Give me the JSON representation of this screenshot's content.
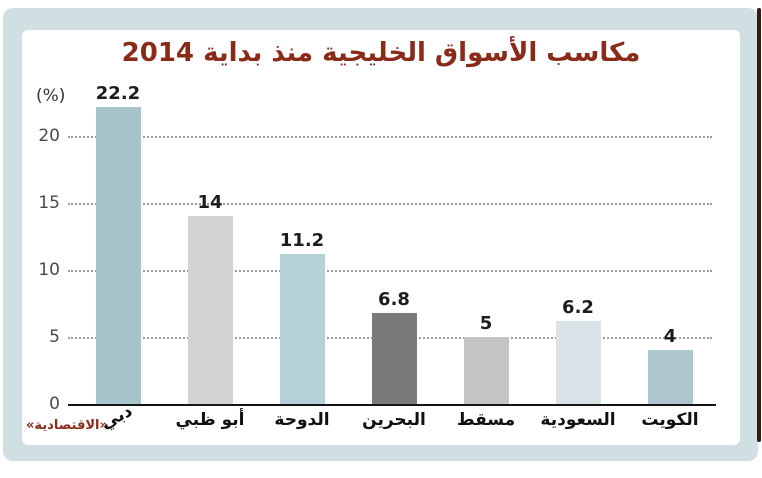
{
  "page": {
    "credit": "«الاقتصادية»"
  },
  "chart_data": {
    "type": "bar",
    "title": "مكاسب الأسواق الخليجية منذ بداية 2014",
    "unit_label": "(%)",
    "categories": [
      "دبي",
      "أبو ظبي",
      "الدوحة",
      "البحرين",
      "مسقط",
      "السعودية",
      "الكويت"
    ],
    "values": [
      22.2,
      14,
      11.2,
      6.8,
      5,
      6.2,
      4
    ],
    "value_labels": [
      "22.2",
      "14",
      "11.2",
      "6.8",
      "5",
      "6.2",
      "4"
    ],
    "bar_colors": [
      "#a8c4cb",
      "#d3d3d3",
      "#b5d0d7",
      "#7a7a7a",
      "#c5c5c5",
      "#d8e4e8",
      "#aec6ce"
    ],
    "yticks": [
      0,
      5,
      10,
      15,
      20
    ],
    "ylim": [
      0,
      22.5
    ],
    "xlabel": "",
    "ylabel": "(%)",
    "grid": "dotted-horizontal",
    "legend": "none",
    "colors": {
      "title": "#8a2b1a",
      "panel_background": "#cfdfe2",
      "card_background": "#ffffff",
      "tick_label": "#4a4a4a",
      "value_label": "#1c1c1c",
      "credit": "#8a2b1a",
      "axis_line": "#151515",
      "gridline": "#9b9b9b"
    }
  }
}
